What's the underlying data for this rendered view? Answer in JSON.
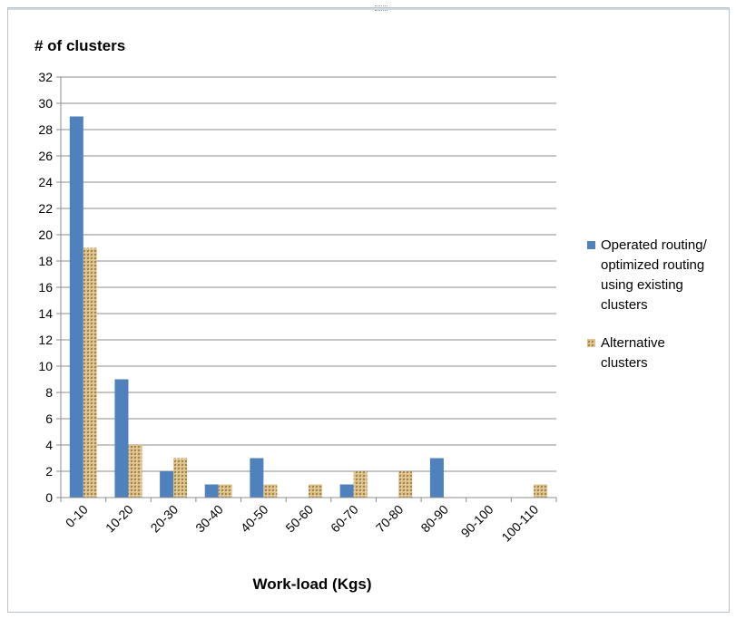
{
  "chart_data": {
    "type": "bar",
    "title": "",
    "ylabel": "# of clusters",
    "xlabel": "Work-load (Kgs)",
    "categories": [
      "0-10",
      "10-20",
      "20-30",
      "30-40",
      "40-50",
      "50-60",
      "60-70",
      "70-80",
      "80-90",
      "90-100",
      "100-110"
    ],
    "series": [
      {
        "name": "Operated routing/ optimized routing using existing clusters",
        "legend_lines": [
          "Operated routing/",
          "optimized routing",
          "using existing",
          "clusters"
        ],
        "color": "#4f81bd",
        "values": [
          29,
          9,
          2,
          1,
          3,
          0,
          1,
          0,
          3,
          0,
          0
        ]
      },
      {
        "name": "Alternative clusters",
        "legend_lines": [
          "Alternative",
          "clusters"
        ],
        "color": "#c8a868",
        "values": [
          19,
          4,
          3,
          1,
          1,
          1,
          2,
          2,
          0,
          0,
          1
        ]
      }
    ],
    "ylim": [
      0,
      32
    ],
    "yticks": [
      0,
      2,
      4,
      6,
      8,
      10,
      12,
      14,
      16,
      18,
      20,
      22,
      24,
      26,
      28,
      30,
      32
    ],
    "grid": true,
    "legend": "right"
  }
}
